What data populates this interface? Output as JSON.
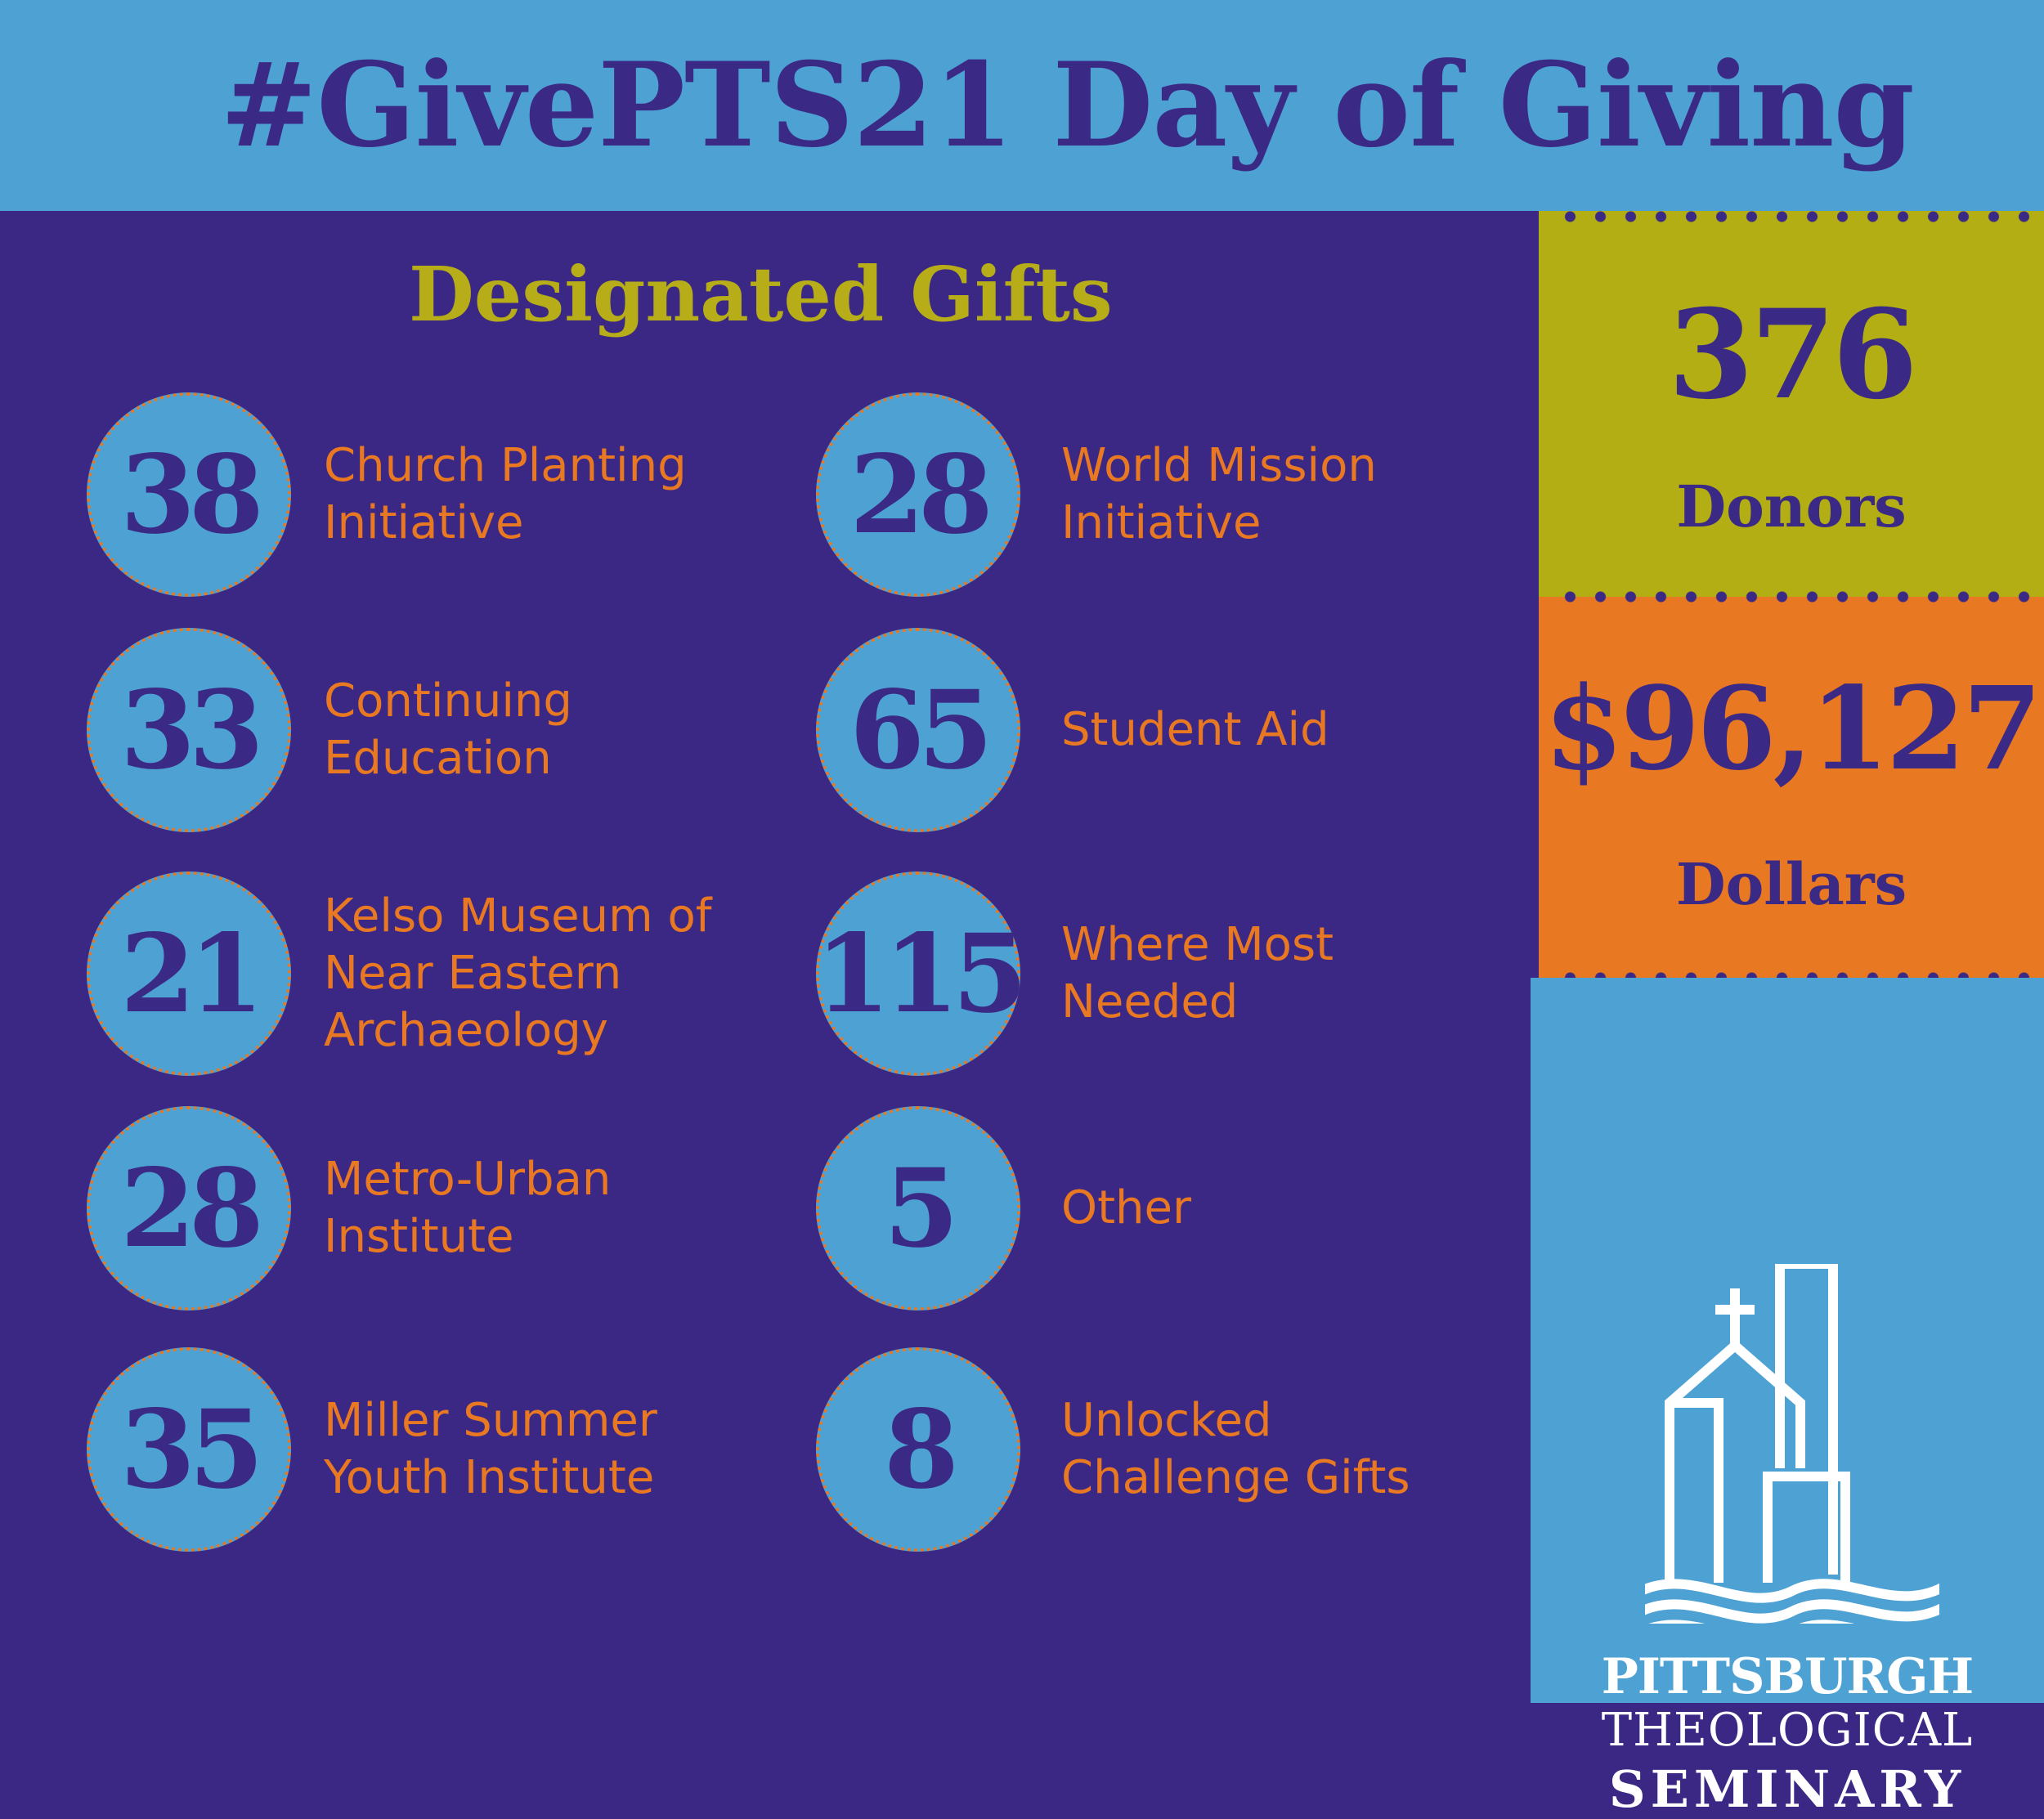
{
  "header": {
    "title": "#GivePTS21 Day of Giving"
  },
  "designated": {
    "title": "Designated Gifts",
    "gifts": [
      {
        "count": "38",
        "label": "Church Planting\nInitiative"
      },
      {
        "count": "28",
        "label": "World Mission\nInitiative"
      },
      {
        "count": "33",
        "label": "Continuing\nEducation"
      },
      {
        "count": "65",
        "label": "Student Aid"
      },
      {
        "count": "21",
        "label": "Kelso Museum of\nNear Eastern\nArchaeology"
      },
      {
        "count": "115",
        "label": "Where Most\nNeeded"
      },
      {
        "count": "28",
        "label": "Metro-Urban\nInstitute"
      },
      {
        "count": "5",
        "label": "Other"
      },
      {
        "count": "35",
        "label": "Miller Summer\nYouth Institute"
      },
      {
        "count": "8",
        "label": "Unlocked\nChallenge Gifts"
      }
    ]
  },
  "stats": {
    "donors_value": "376",
    "donors_label": "Donors",
    "dollars_value": "$96,127",
    "dollars_label": "Dollars"
  },
  "logo": {
    "line1": "PITTSBURGH",
    "line2": "THEOLOGICAL",
    "line3": "SEMINARY"
  },
  "colors": {
    "purple": "#3a2884",
    "sky": "#4ea2d3",
    "olive": "#b2ae13",
    "orange": "#e97822"
  }
}
